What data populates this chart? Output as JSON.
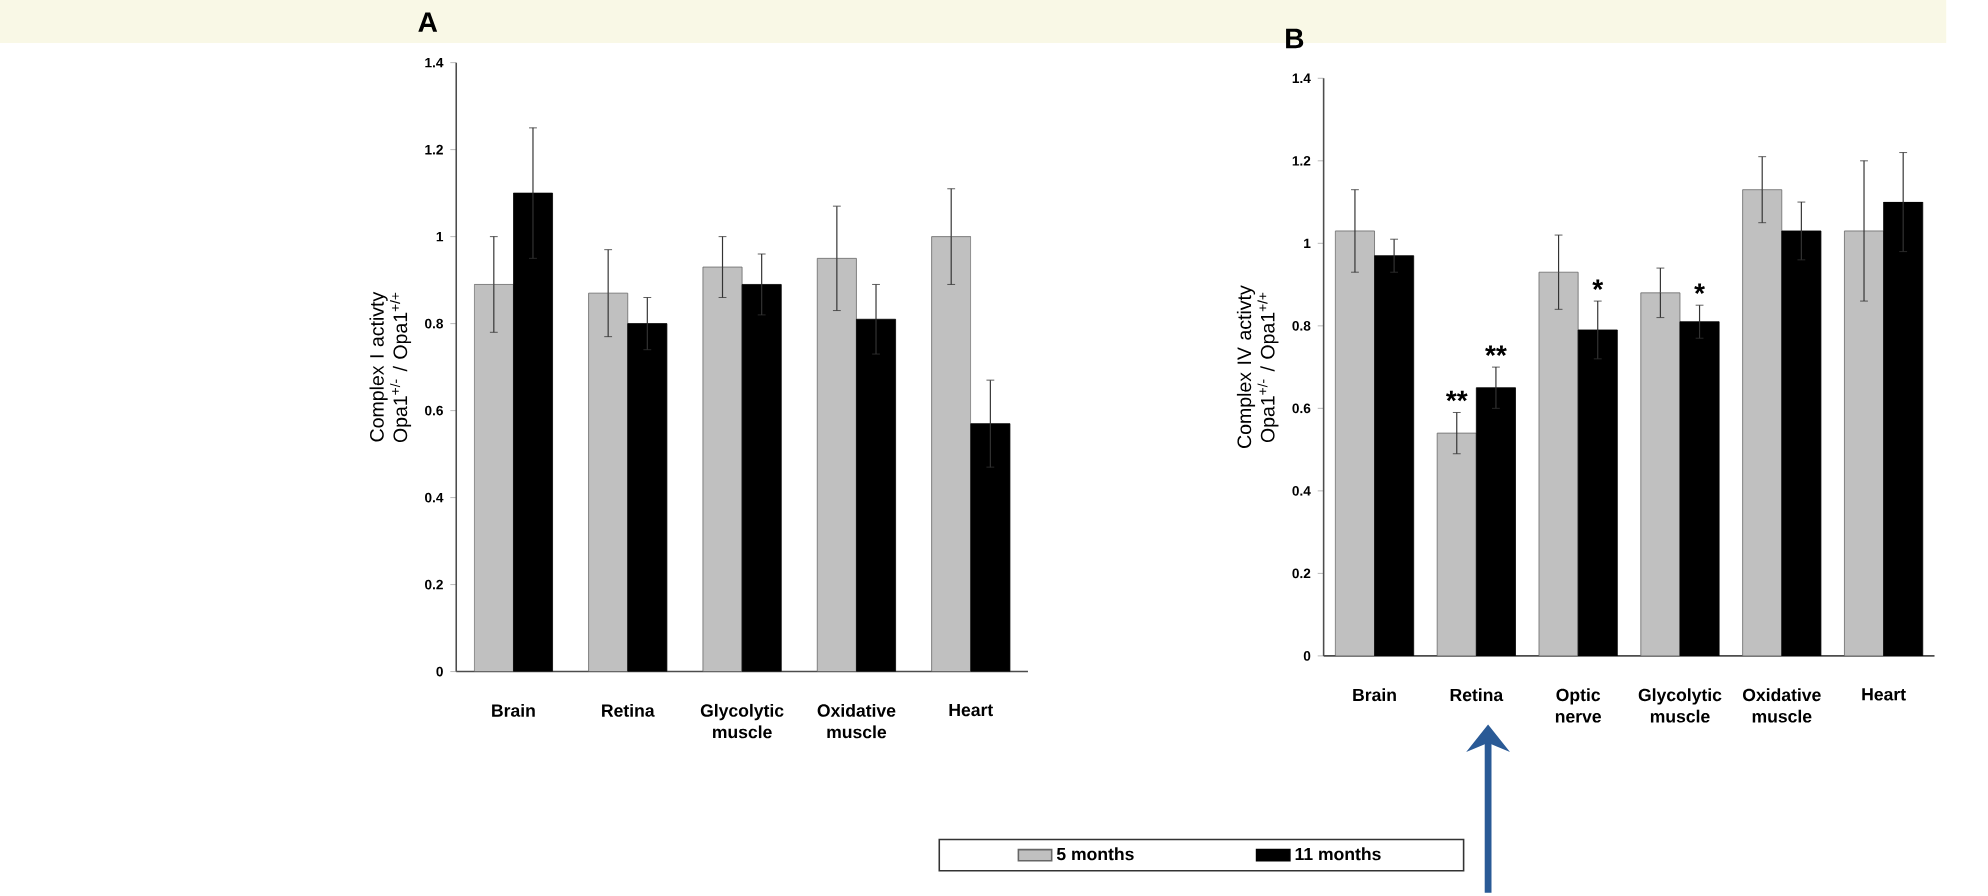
{
  "chart_data": [
    {
      "type": "bar",
      "title": "A",
      "ylabel": "Complex I activty Opa1$^{+/-}$ / Opa1$^{+/+}$",
      "categories": [
        "Brain",
        "Retina",
        "Glycolytic muscle",
        "Oxidative muscle",
        "Heart"
      ],
      "series": [
        {
          "color": "#c0c0c0",
          "values": [
            0.89,
            0.87,
            0.93,
            0.95,
            1.0
          ],
          "errors": [
            0.11,
            0.1,
            0.07,
            0.12,
            0.11
          ]
        },
        {
          "color": "#000000",
          "values": [
            1.1,
            0.8,
            0.89,
            0.81,
            0.57
          ],
          "errors": [
            0.15,
            0.06,
            0.07,
            0.08,
            0.1
          ]
        }
      ],
      "ylim": [
        0,
        1.4
      ],
      "yticks": [
        0,
        0.2,
        0.4,
        0.6,
        0.8,
        1,
        1.2,
        1.4
      ],
      "grid": false
    },
    {
      "type": "bar",
      "title": "B",
      "ylabel": "Complex IV activty Opa1$^{+/-}$ / Opa1$^{+/+}$",
      "categories": [
        "Brain",
        "Retina",
        "Optic nerve",
        "Glycolytic muscle",
        "Oxidative muscle",
        "Heart"
      ],
      "series": [
        {
          "name": "5 months",
          "color": "#c0c0c0",
          "values": [
            1.03,
            0.54,
            0.93,
            0.88,
            1.13,
            1.03
          ],
          "errors": [
            0.1,
            0.05,
            0.09,
            0.06,
            0.08,
            0.17
          ]
        },
        {
          "name": "11 months",
          "color": "#000000",
          "values": [
            0.97,
            0.65,
            0.79,
            0.81,
            1.03,
            1.1
          ],
          "errors": [
            0.04,
            0.05,
            0.07,
            0.04,
            0.07,
            0.12
          ]
        }
      ],
      "ylim": [
        0,
        1.4
      ],
      "yticks": [
        0,
        0.2,
        0.4,
        0.6,
        0.8,
        1,
        1.2,
        1.4
      ],
      "grid": false,
      "legend": "bottom",
      "annotations": [
        {
          "text": "**",
          "x": "Retina",
          "y": 0.59
        },
        {
          "text": "**",
          "x": "Retina",
          "y": 0.65
        },
        {
          "text": "*",
          "x": "Optic nerve",
          "y": 0.86
        },
        {
          "text": "*",
          "x": "Glycolytic muscle",
          "y": 0.85
        }
      ]
    }
  ]
}
